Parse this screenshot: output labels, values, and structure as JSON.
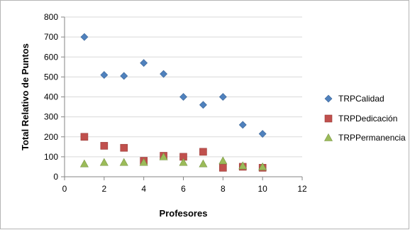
{
  "chart_data": {
    "type": "scatter",
    "title": "",
    "xlabel": "Profesores",
    "ylabel": "Total Relativo de Puntos",
    "xlim": [
      0,
      12
    ],
    "ylim": [
      0,
      800
    ],
    "xticks": [
      0,
      2,
      4,
      6,
      8,
      10,
      12
    ],
    "yticks": [
      0,
      100,
      200,
      300,
      400,
      500,
      600,
      700,
      800
    ],
    "grid": "horizontal",
    "legend_position": "right",
    "series": [
      {
        "name": "TRPCalidad",
        "marker": "diamond",
        "color": "#4f81bd",
        "points": [
          [
            1,
            700
          ],
          [
            2,
            510
          ],
          [
            3,
            505
          ],
          [
            4,
            570
          ],
          [
            5,
            515
          ],
          [
            6,
            400
          ],
          [
            7,
            360
          ],
          [
            8,
            400
          ],
          [
            9,
            260
          ],
          [
            10,
            215
          ]
        ]
      },
      {
        "name": "TRPDedicación",
        "marker": "square",
        "color": "#c0504d",
        "points": [
          [
            1,
            200
          ],
          [
            2,
            155
          ],
          [
            3,
            145
          ],
          [
            4,
            80
          ],
          [
            5,
            105
          ],
          [
            6,
            100
          ],
          [
            7,
            125
          ],
          [
            8,
            45
          ],
          [
            9,
            50
          ],
          [
            10,
            45
          ]
        ]
      },
      {
        "name": "TRPPermanencia",
        "marker": "triangle",
        "color": "#9bbb59",
        "points": [
          [
            1,
            65
          ],
          [
            2,
            72
          ],
          [
            3,
            72
          ],
          [
            4,
            72
          ],
          [
            5,
            100
          ],
          [
            6,
            72
          ],
          [
            7,
            65
          ],
          [
            8,
            80
          ],
          [
            9,
            55
          ],
          [
            10,
            50
          ]
        ]
      }
    ]
  }
}
